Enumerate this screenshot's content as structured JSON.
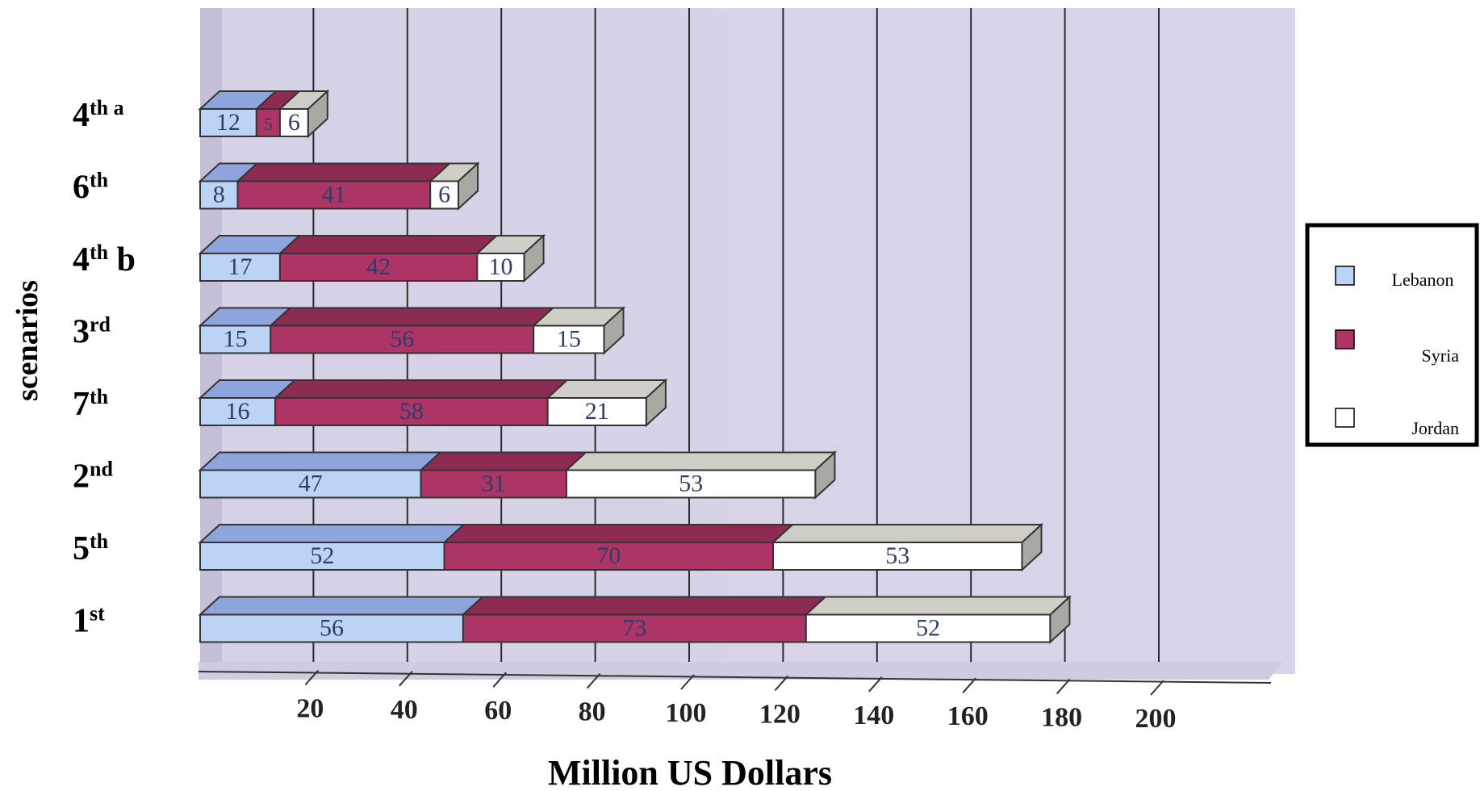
{
  "chart_data": {
    "type": "bar",
    "orientation": "horizontal",
    "stacked": true,
    "categories": [
      {
        "base": "4",
        "sup": "th a"
      },
      {
        "base": "6",
        "sup": "th"
      },
      {
        "base": "4",
        "sup": "th",
        "suffix": " b"
      },
      {
        "base": "3",
        "sup": "rd"
      },
      {
        "base": "7",
        "sup": "th"
      },
      {
        "base": "2",
        "sup": "nd"
      },
      {
        "base": "5",
        "sup": "th"
      },
      {
        "base": "1",
        "sup": "st"
      }
    ],
    "series": [
      {
        "name": "Lebanon",
        "color": "#bcd4f4",
        "values": [
          12,
          8,
          17,
          15,
          16,
          47,
          52,
          56
        ]
      },
      {
        "name": "Syria",
        "color": "#ad3565",
        "values": [
          5,
          41,
          42,
          56,
          58,
          31,
          70,
          73
        ]
      },
      {
        "name": "Jordan",
        "color": "#ffffff",
        "values": [
          6,
          6,
          10,
          15,
          21,
          53,
          53,
          52
        ]
      }
    ],
    "xlabel": "Million US Dollars",
    "ylabel": "scenarios",
    "xlim": [
      0,
      200
    ],
    "xticks": [
      "20",
      "40",
      "60",
      "80",
      "100",
      "120",
      "140",
      "160",
      "180",
      "200"
    ],
    "grid": true,
    "legend_position": "right"
  }
}
